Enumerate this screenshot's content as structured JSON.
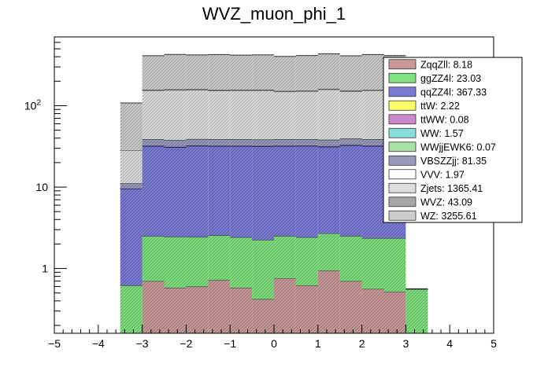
{
  "chart_data": {
    "type": "bar",
    "title": "WVZ_muon_phi_1",
    "stacked": true,
    "log_y": true,
    "xlim": [
      -5,
      5
    ],
    "ylim": [
      0.16,
      700
    ],
    "grid": false,
    "legend_position": "top-right",
    "x_ticks": [
      -5,
      -4,
      -3,
      -2,
      -1,
      0,
      1,
      2,
      3,
      4,
      5
    ],
    "x_tick_labels": [
      "−5",
      "−4",
      "−3",
      "−2",
      "−1",
      "0",
      "1",
      "2",
      "3",
      "4",
      "5"
    ],
    "y_ticks": [
      1,
      10,
      100
    ],
    "y_tick_labels": [
      "1",
      "10",
      "10^2"
    ],
    "bin_edges": [
      -3.5,
      -3.0,
      -2.5,
      -2.0,
      -1.5,
      -1.0,
      -0.5,
      0.0,
      0.5,
      1.0,
      1.5,
      2.0,
      2.5,
      3.0,
      3.5
    ],
    "legend": [
      "ZqqZll: 8.18",
      "ggZZ4l: 23.03",
      "qqZZ4l: 367.33",
      "ttW: 2.22",
      "ttWW: 0.08",
      "WW: 1.57",
      "WWjjEWK6: 0.07",
      "VBSZZjj: 81.35",
      "VVV: 1.97",
      "Zjets: 1365.41",
      "WVZ: 43.09",
      "WZ: 3255.61"
    ],
    "series": [
      {
        "name": "ZqqZll",
        "color": "#c99999",
        "values": [
          0.0,
          0.7,
          0.58,
          0.6,
          0.72,
          0.58,
          0.42,
          0.76,
          0.62,
          0.94,
          0.7,
          0.56,
          0.52,
          0.0
        ]
      },
      {
        "name": "ggZZ4l",
        "color": "#7ee07e",
        "values": [
          0.62,
          1.8,
          1.87,
          1.84,
          1.83,
          1.84,
          1.83,
          1.75,
          1.8,
          1.76,
          1.81,
          1.8,
          1.84,
          0.56
        ]
      },
      {
        "name": "qqZZ4l",
        "color": "#7b7bd6",
        "values": [
          9.0,
          29.5,
          28.5,
          29.8,
          29.4,
          29.5,
          29.6,
          29.5,
          29.7,
          28.7,
          30.2,
          29.7,
          29.9,
          0.0
        ]
      },
      {
        "name": "ttW",
        "color": "#ffff66",
        "values": [
          0.0,
          0.18,
          0.17,
          0.18,
          0.18,
          0.17,
          0.18,
          0.17,
          0.17,
          0.18,
          0.17,
          0.18,
          0.17,
          0.0
        ]
      },
      {
        "name": "ttWW",
        "color": "#cc88cc",
        "values": [
          0.0,
          0.007,
          0.006,
          0.006,
          0.006,
          0.006,
          0.006,
          0.006,
          0.006,
          0.006,
          0.006,
          0.006,
          0.006,
          0.0
        ]
      },
      {
        "name": "WW",
        "color": "#88dddd",
        "values": [
          0.0,
          0.13,
          0.12,
          0.12,
          0.13,
          0.12,
          0.12,
          0.13,
          0.12,
          0.12,
          0.13,
          0.12,
          0.12,
          0.0
        ]
      },
      {
        "name": "WWjjEWK6",
        "color": "#a8e0a8",
        "values": [
          0.0,
          0.006,
          0.006,
          0.006,
          0.006,
          0.006,
          0.006,
          0.006,
          0.006,
          0.006,
          0.006,
          0.006,
          0.006,
          0.0
        ]
      },
      {
        "name": "VBSZZjj",
        "color": "#9999bb",
        "values": [
          1.5,
          6.3,
          6.4,
          6.3,
          6.3,
          6.4,
          6.2,
          6.3,
          6.3,
          6.4,
          6.3,
          6.3,
          6.3,
          0.0
        ]
      },
      {
        "name": "VVV",
        "color": "#ffffff",
        "values": [
          0.0,
          0.16,
          0.15,
          0.15,
          0.16,
          0.15,
          0.15,
          0.15,
          0.15,
          0.16,
          0.15,
          0.15,
          0.15,
          0.0
        ]
      },
      {
        "name": "Zjets",
        "color": "#dddddd",
        "values": [
          17.0,
          115.0,
          118.0,
          117.0,
          114.0,
          115.0,
          116.0,
          110.0,
          112.0,
          120.0,
          110.0,
          115.0,
          110.0,
          0.0
        ]
      },
      {
        "name": "WVZ",
        "color": "#a6a6a6",
        "values": [
          0.0,
          3.3,
          3.2,
          3.3,
          3.3,
          3.3,
          3.3,
          3.2,
          3.3,
          3.3,
          3.3,
          3.3,
          3.3,
          0.0
        ]
      },
      {
        "name": "WZ",
        "color": "#cccccc",
        "values": [
          80.0,
          255.0,
          268.0,
          262.0,
          270.0,
          262.0,
          264.0,
          252.0,
          260.0,
          272.0,
          258.0,
          268.0,
          262.0,
          0.0
        ]
      }
    ]
  }
}
